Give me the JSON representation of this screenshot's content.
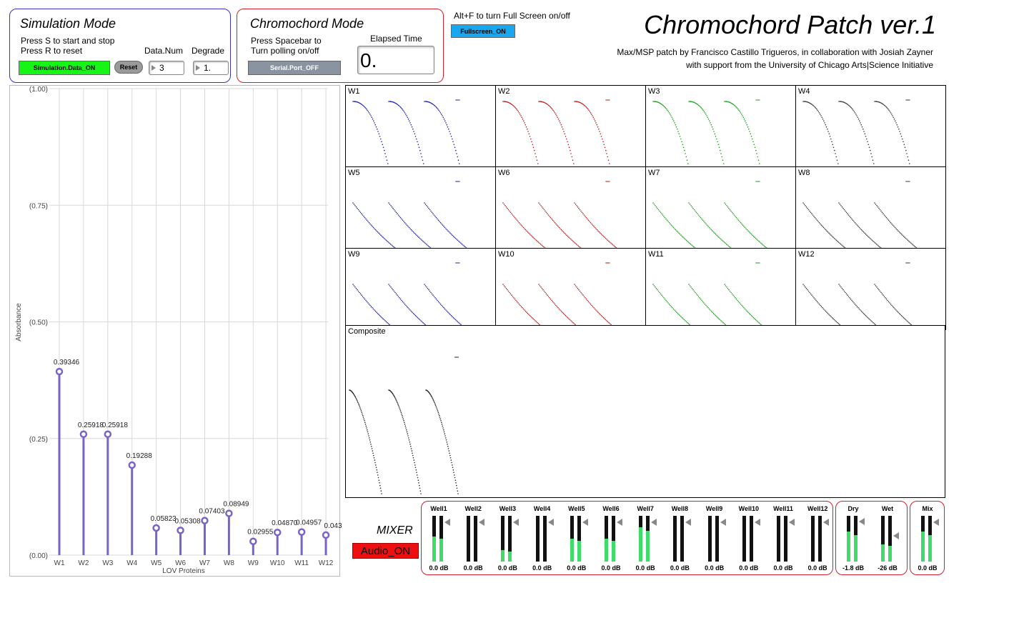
{
  "simulation": {
    "title": "Simulation Mode",
    "line1": "Press S to start and stop",
    "line2": "Press R to reset",
    "toggle_label": "Simulation.Data_ON",
    "reset_label": "Reset",
    "datanum_label": "Data.Num",
    "datanum_value": "3",
    "degrade_label": "Degrade",
    "degrade_value": "1."
  },
  "chromochord": {
    "title": "Chromochord Mode",
    "line1": "Press Spacebar to",
    "line2": "Turn polling on/off",
    "serial_label": "Serial.Port_OFF",
    "elapsed_label": "Elapsed Time",
    "elapsed_value": "0."
  },
  "fullscreen": {
    "hint": "Alt+F to turn Full Screen on/off",
    "button_label": "Fullscreen_ON"
  },
  "header": {
    "title": "Chromochord Patch ver.1",
    "credit1": "Max/MSP patch by Francisco Castillo Trigueros, in collaboration with Josiah Zayner",
    "credit2": "with support from the University of Chicago Arts|Science Initiative"
  },
  "chart_data": {
    "type": "lollipop",
    "xlabel": "LOV Proteins",
    "ylabel": "Absorbance",
    "ylim": [
      0,
      1
    ],
    "yticks": [
      "(0.00)",
      "(0.25)",
      "(0.50)",
      "(0.75)",
      "(1.00)"
    ],
    "categories": [
      "W1",
      "W2",
      "W3",
      "W4",
      "W5",
      "W6",
      "W7",
      "W8",
      "W9",
      "W10",
      "W11",
      "W12"
    ],
    "values": [
      0.39346,
      0.25918,
      0.25918,
      0.19288,
      0.05823,
      0.05308,
      0.07403,
      0.08949,
      0.02955,
      0.0487,
      0.04957,
      0.043
    ],
    "value_labels": [
      "0.39346",
      "0.25918",
      "0.25918",
      "0.19288",
      "0.05823",
      "0.05308",
      "0.07403",
      "0.08949",
      "0.02955",
      "0.04870",
      "0.04957",
      "0.043"
    ],
    "color": "#7a63c8"
  },
  "wells": {
    "labels": [
      "W1",
      "W2",
      "W3",
      "W4",
      "W5",
      "W6",
      "W7",
      "W8",
      "W9",
      "W10",
      "W11",
      "W12"
    ],
    "colors": [
      "#1a1aa0",
      "#b01a1a",
      "#1a9a1a",
      "#333333",
      "#1a1aa0",
      "#b01a1a",
      "#1a9a1a",
      "#333333",
      "#1a1aa0",
      "#b01a1a",
      "#1a9a1a",
      "#333333"
    ],
    "composite_label": "Composite"
  },
  "mixer": {
    "title": "MIXER",
    "audio_label": "Audio_ON",
    "channels": [
      {
        "name": "Well1",
        "db": "0.0 dB",
        "level": 0.55
      },
      {
        "name": "Well2",
        "db": "0.0 dB",
        "level": 0.0
      },
      {
        "name": "Well3",
        "db": "0.0 dB",
        "level": 0.25
      },
      {
        "name": "Well4",
        "db": "0.0 dB",
        "level": 0.0
      },
      {
        "name": "Well5",
        "db": "0.0 dB",
        "level": 0.5
      },
      {
        "name": "Well6",
        "db": "0.0 dB",
        "level": 0.5
      },
      {
        "name": "Well7",
        "db": "0.0 dB",
        "level": 0.75
      },
      {
        "name": "Well8",
        "db": "0.0 dB",
        "level": 0.0
      },
      {
        "name": "Well9",
        "db": "0.0 dB",
        "level": 0.0
      },
      {
        "name": "Well10",
        "db": "0.0 dB",
        "level": 0.0
      },
      {
        "name": "Well11",
        "db": "0.0 dB",
        "level": 0.0
      },
      {
        "name": "Well12",
        "db": "0.0 dB",
        "level": 0.0
      }
    ],
    "dry": {
      "name": "Dry",
      "db": "-1.8 dB",
      "level": 0.65
    },
    "wet": {
      "name": "Wet",
      "db": "-26 dB",
      "level": 0.38
    },
    "mix": {
      "name": "Mix",
      "db": "0.0 dB",
      "level": 0.65
    }
  }
}
